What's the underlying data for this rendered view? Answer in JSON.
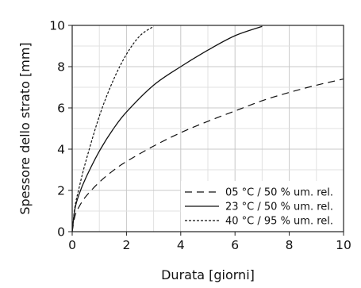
{
  "chart_data": {
    "type": "line",
    "title": "",
    "xlabel": "Durata [giorni]",
    "ylabel": "Spessore dello strato [mm]",
    "xlim": [
      0,
      10
    ],
    "ylim": [
      0,
      10
    ],
    "xticks": [
      0,
      2,
      4,
      6,
      8,
      10
    ],
    "yticks": [
      0,
      2,
      4,
      6,
      8,
      10
    ],
    "xtick_labels": [
      "0",
      "2",
      "4",
      "6",
      "8",
      "10"
    ],
    "ytick_labels": [
      "0",
      "2",
      "4",
      "6",
      "8",
      "10"
    ],
    "grid": true,
    "legend_position": "bottom-right",
    "series": [
      {
        "name": "05 °C / 50 % um. rel.",
        "style": "dashed",
        "x": [
          0,
          0.1,
          0.25,
          0.5,
          1,
          1.5,
          2,
          3,
          4,
          5,
          6,
          7,
          8,
          9,
          10
        ],
        "y": [
          0,
          0.75,
          1.2,
          1.7,
          2.4,
          2.95,
          3.4,
          4.15,
          4.8,
          5.35,
          5.85,
          6.35,
          6.75,
          7.1,
          7.4
        ]
      },
      {
        "name": "23 °C / 50 % um. rel.",
        "style": "solid",
        "x": [
          0,
          0.1,
          0.25,
          0.5,
          1,
          1.5,
          2,
          3,
          4,
          5,
          6,
          7
        ],
        "y": [
          0,
          1.1,
          1.8,
          2.6,
          3.9,
          4.95,
          5.8,
          7.1,
          8.0,
          8.8,
          9.5,
          9.95
        ]
      },
      {
        "name": "40 °C / 95 % um. rel.",
        "style": "dotted",
        "x": [
          0,
          0.1,
          0.25,
          0.5,
          1,
          1.5,
          2,
          2.5,
          3
        ],
        "y": [
          0,
          1.2,
          2.1,
          3.4,
          5.6,
          7.3,
          8.6,
          9.5,
          9.95
        ]
      }
    ]
  }
}
